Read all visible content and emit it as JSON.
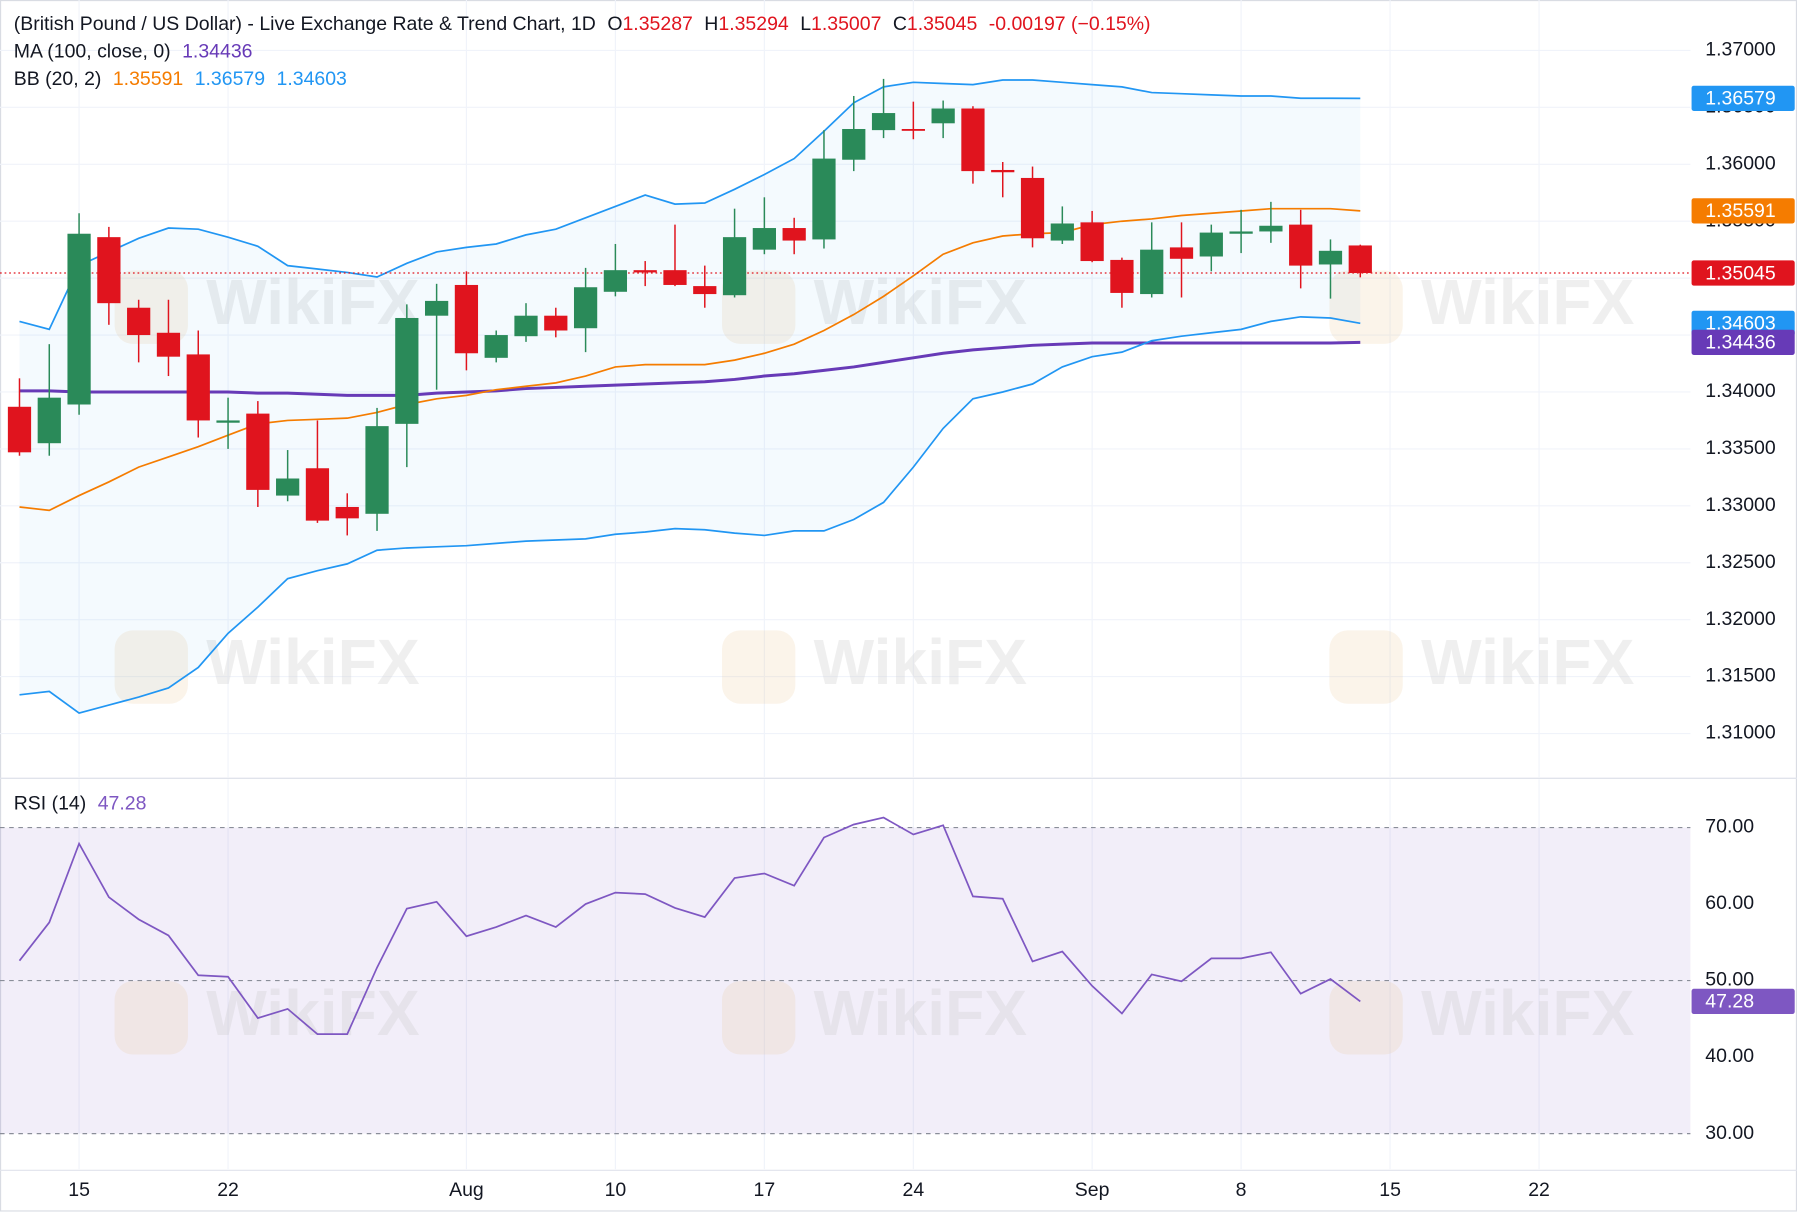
{
  "chart_data": [
    {
      "type": "candlestick",
      "title": "(British Pound / US Dollar) - Live Exchange Rate & Trend Chart, 1D",
      "ohlc_labels": [
        "O",
        "H",
        "L",
        "C"
      ],
      "change": "-0.00197 (−0.15%)",
      "watermark": "WikiFX",
      "up_color": "#2a8a59",
      "down_color": "#e0141e",
      "open": [
        1.3387,
        1.3355,
        1.3389,
        1.3536,
        1.3474,
        1.3452,
        1.3433,
        1.3373,
        1.3381,
        1.3309,
        1.3333,
        1.3299,
        1.3293,
        1.3372,
        1.3467,
        1.3494,
        1.343,
        1.3449,
        1.3467,
        1.3456,
        1.3488,
        1.3507,
        1.3507,
        1.3493,
        1.3485,
        1.3525,
        1.3544,
        1.3534,
        1.3604,
        1.363,
        1.3631,
        1.3636,
        1.3649,
        1.3595,
        1.3588,
        1.3533,
        1.3549,
        1.3516,
        1.3486,
        1.3527,
        1.3519,
        1.3539,
        1.3541,
        1.3547,
        1.3512,
        1.35287
      ],
      "high": [
        1.3412,
        1.3442,
        1.3557,
        1.3545,
        1.3481,
        1.3481,
        1.3454,
        1.3395,
        1.3392,
        1.3349,
        1.3375,
        1.3311,
        1.3386,
        1.3477,
        1.3495,
        1.3506,
        1.3454,
        1.3478,
        1.3474,
        1.3509,
        1.353,
        1.3515,
        1.3547,
        1.3511,
        1.3561,
        1.3571,
        1.3553,
        1.363,
        1.366,
        1.3675,
        1.3655,
        1.3656,
        1.3651,
        1.3602,
        1.3598,
        1.3563,
        1.3559,
        1.3518,
        1.3549,
        1.3549,
        1.3547,
        1.356,
        1.3567,
        1.356,
        1.3534,
        1.35294
      ],
      "low": [
        1.3344,
        1.3344,
        1.338,
        1.3459,
        1.3426,
        1.3414,
        1.336,
        1.335,
        1.3299,
        1.3304,
        1.3285,
        1.3274,
        1.3278,
        1.3334,
        1.3402,
        1.3419,
        1.3426,
        1.3444,
        1.3448,
        1.3435,
        1.3484,
        1.3493,
        1.3493,
        1.3474,
        1.3483,
        1.3521,
        1.3521,
        1.3526,
        1.3594,
        1.3623,
        1.3622,
        1.3623,
        1.3583,
        1.3571,
        1.3527,
        1.353,
        1.3514,
        1.3474,
        1.3483,
        1.3483,
        1.3506,
        1.3522,
        1.3531,
        1.3491,
        1.3482,
        1.35007
      ],
      "close": [
        1.3347,
        1.3395,
        1.3539,
        1.3478,
        1.345,
        1.3431,
        1.3375,
        1.3375,
        1.3314,
        1.3324,
        1.3287,
        1.3289,
        1.337,
        1.3465,
        1.348,
        1.3434,
        1.345,
        1.3467,
        1.3454,
        1.3492,
        1.3507,
        1.3505,
        1.3494,
        1.3486,
        1.3536,
        1.3544,
        1.3533,
        1.3605,
        1.3631,
        1.3645,
        1.363,
        1.3649,
        1.3594,
        1.3593,
        1.3535,
        1.3548,
        1.3515,
        1.3487,
        1.3525,
        1.3517,
        1.354,
        1.3541,
        1.3546,
        1.3511,
        1.3524,
        1.35045
      ],
      "overlays": [
        {
          "name": "MA (100, close, 0)",
          "lines": [
            {
              "color": "#673ab7",
              "values": [
                1.3401,
                1.3401,
                1.34,
                1.34,
                1.34,
                1.34,
                1.34,
                1.34,
                1.3399,
                1.3399,
                1.3398,
                1.3397,
                1.3397,
                1.3397,
                1.3399,
                1.34,
                1.3401,
                1.3403,
                1.3404,
                1.3405,
                1.3406,
                1.3407,
                1.3408,
                1.3409,
                1.3411,
                1.3414,
                1.3416,
                1.3419,
                1.3422,
                1.3426,
                1.343,
                1.3434,
                1.3437,
                1.3439,
                1.3441,
                1.3442,
                1.3443,
                1.3443,
                1.3443,
                1.3443,
                1.3443,
                1.3443,
                1.3443,
                1.3443,
                1.3443,
                1.34436
              ]
            }
          ]
        },
        {
          "name": "BB (20, 2)",
          "fill": "#2196f3",
          "lines": [
            {
              "color": "#f57c00",
              "values": [
                1.3299,
                1.3296,
                1.3309,
                1.3321,
                1.3334,
                1.3343,
                1.3352,
                1.3362,
                1.3372,
                1.3375,
                1.3376,
                1.3377,
                1.3382,
                1.3389,
                1.3394,
                1.3397,
                1.3402,
                1.3405,
                1.3408,
                1.3414,
                1.3422,
                1.3424,
                1.3424,
                1.3424,
                1.3428,
                1.3434,
                1.3442,
                1.3454,
                1.3468,
                1.3484,
                1.3502,
                1.3521,
                1.3531,
                1.3537,
                1.3539,
                1.354,
                1.3547,
                1.355,
                1.3552,
                1.3555,
                1.3557,
                1.3559,
                1.3561,
                1.3561,
                1.3561,
                1.35591
              ]
            },
            {
              "color": "#2196f3",
              "values": [
                1.3462,
                1.3455,
                1.3511,
                1.3523,
                1.3535,
                1.3544,
                1.3543,
                1.3536,
                1.3528,
                1.3511,
                1.3508,
                1.3505,
                1.3501,
                1.3513,
                1.3523,
                1.3527,
                1.353,
                1.3538,
                1.3543,
                1.3553,
                1.3563,
                1.3573,
                1.3565,
                1.3566,
                1.3578,
                1.3591,
                1.3605,
                1.3629,
                1.3654,
                1.3668,
                1.3672,
                1.3671,
                1.367,
                1.3674,
                1.3674,
                1.3672,
                1.367,
                1.3668,
                1.3663,
                1.3662,
                1.3661,
                1.366,
                1.366,
                1.3658,
                1.3658,
                1.36579
              ]
            },
            {
              "color": "#2196f3",
              "values": [
                1.3134,
                1.3137,
                1.3118,
                1.3125,
                1.3132,
                1.314,
                1.3158,
                1.3188,
                1.3211,
                1.3236,
                1.3243,
                1.3249,
                1.3261,
                1.3263,
                1.3264,
                1.3265,
                1.3267,
                1.3269,
                1.327,
                1.3271,
                1.3275,
                1.3277,
                1.328,
                1.3279,
                1.3276,
                1.3274,
                1.3278,
                1.3278,
                1.3288,
                1.3303,
                1.3334,
                1.3368,
                1.3394,
                1.34,
                1.3407,
                1.3422,
                1.3431,
                1.3435,
                1.3445,
                1.3449,
                1.3452,
                1.3455,
                1.3462,
                1.3466,
                1.3465,
                1.34603
              ]
            }
          ]
        }
      ],
      "ylim": [
        1.30617,
        1.37443
      ],
      "yticks": [
        {
          "value": 1.31,
          "label": "1.31000"
        },
        {
          "value": 1.315,
          "label": "1.31500"
        },
        {
          "value": 1.32,
          "label": "1.32000"
        },
        {
          "value": 1.325,
          "label": "1.32500"
        },
        {
          "value": 1.33,
          "label": "1.33000"
        },
        {
          "value": 1.335,
          "label": "1.33500"
        },
        {
          "value": 1.34,
          "label": "1.34000"
        },
        {
          "value": 1.345,
          "label": "1.34500"
        },
        {
          "value": 1.35,
          "label": "1.35000"
        },
        {
          "value": 1.355,
          "label": "1.35500"
        },
        {
          "value": 1.36,
          "label": "1.36000"
        },
        {
          "value": 1.365,
          "label": "1.36500"
        },
        {
          "value": 1.37,
          "label": "1.37000"
        }
      ],
      "xlim": [
        -0.654,
        56.08
      ],
      "xticks": [
        {
          "value": 2,
          "label": "15"
        },
        {
          "value": 7,
          "label": "22"
        },
        {
          "value": 15,
          "label": "Aug"
        },
        {
          "value": 20,
          "label": "10"
        },
        {
          "value": 25,
          "label": "17"
        },
        {
          "value": 30,
          "label": "24"
        },
        {
          "value": 36,
          "label": "Sep"
        },
        {
          "value": 41,
          "label": "8"
        },
        {
          "value": 46,
          "label": "15"
        },
        {
          "value": 51,
          "label": "22"
        }
      ],
      "grid": true
    },
    {
      "type": "line",
      "series": [
        {
          "name": "RSI (14)",
          "color": "#7e57c2",
          "values": [
            52.6,
            57.6,
            67.9,
            60.9,
            58.0,
            55.9,
            50.7,
            50.5,
            45.1,
            46.3,
            43.0,
            43.0,
            51.7,
            59.4,
            60.3,
            55.8,
            57.0,
            58.5,
            57.0,
            60.0,
            61.5,
            61.3,
            59.5,
            58.3,
            63.4,
            64.0,
            62.4,
            68.7,
            70.4,
            71.3,
            69.1,
            70.3,
            61.0,
            60.7,
            52.5,
            53.8,
            49.3,
            45.7,
            50.8,
            49.9,
            52.9,
            52.9,
            53.7,
            48.3,
            50.2,
            47.28
          ]
        }
      ],
      "band": [
        30,
        70
      ],
      "band_color": "#7e57c2",
      "levels": [
        30,
        50,
        70
      ],
      "ylim": [
        25.36,
        76.29
      ],
      "yticks": [
        {
          "value": 30,
          "label": "30.00"
        },
        {
          "value": 40,
          "label": "40.00"
        },
        {
          "value": 50,
          "label": "50.00"
        },
        {
          "value": 60,
          "label": "60.00"
        },
        {
          "value": 70,
          "label": "70.00"
        }
      ],
      "grid": true
    }
  ]
}
